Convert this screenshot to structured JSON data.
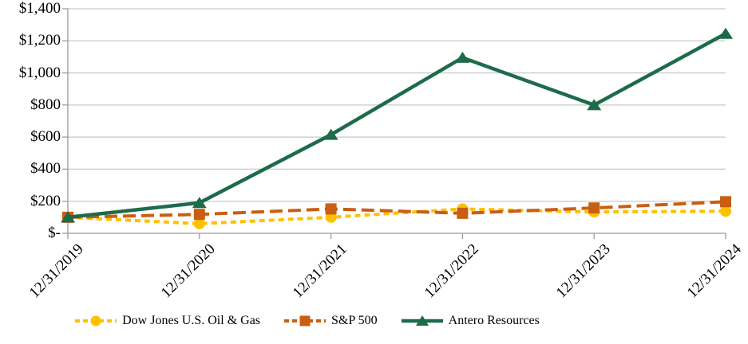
{
  "chart_data": {
    "type": "line",
    "title": "",
    "xlabel": "",
    "ylabel": "",
    "categories": [
      "12/31/2019",
      "12/31/2020",
      "12/31/2021",
      "12/31/2022",
      "12/31/2023",
      "12/31/2024"
    ],
    "series": [
      {
        "name": "Dow Jones U.S. Oil & Gas",
        "values": [
          100,
          60,
          100,
          152,
          133,
          138
        ],
        "color": "#FFC000",
        "marker": "circle",
        "dash": "short"
      },
      {
        "name": "S&P 500",
        "values": [
          100,
          118,
          152,
          125,
          158,
          197
        ],
        "color": "#C95E13",
        "marker": "square",
        "dash": "long"
      },
      {
        "name": "Antero Resources",
        "values": [
          100,
          190,
          615,
          1095,
          800,
          1245
        ],
        "color": "#1D6B4A",
        "marker": "triangle",
        "dash": "solid"
      }
    ],
    "ylim": [
      0,
      1400
    ],
    "ytick_step": 200,
    "ytick_labels": [
      "$-",
      "$200",
      "$400",
      "$600",
      "$800",
      "$1,000",
      "$1,200",
      "$1,400"
    ],
    "grid": "horizontal",
    "legend_position": "bottom"
  },
  "colors": {
    "gridline": "#C9C9C9",
    "axis": "#9A9A9A",
    "text": "#000000",
    "background": "#FFFFFF"
  }
}
